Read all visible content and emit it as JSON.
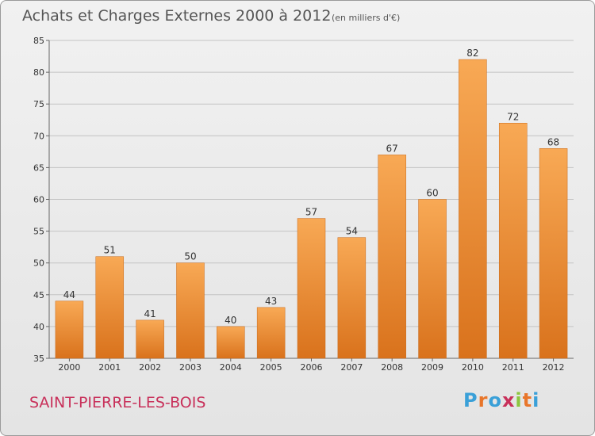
{
  "header": {
    "title": "Achats et Charges Externes 2000 à 2012",
    "unit": "(en milliers d'€)"
  },
  "footer": {
    "commune": "SAINT-PIERRE-LES-BOIS",
    "logo": "Proxiti"
  },
  "colors": {
    "bar_light": "#f8a955",
    "bar_dark": "#d9721c",
    "commune_text": "#c8305a",
    "logo_letters": [
      "#3aa0d8",
      "#e8762a",
      "#3aa0d8",
      "#c8305a",
      "#8cc63f",
      "#e8762a",
      "#3aa0d8"
    ]
  },
  "chart_data": {
    "type": "bar",
    "title": "Achats et Charges Externes 2000 à 2012",
    "subtitle": "(en milliers d'€)",
    "categories": [
      "2000",
      "2001",
      "2002",
      "2003",
      "2004",
      "2005",
      "2006",
      "2007",
      "2008",
      "2009",
      "2010",
      "2011",
      "2012"
    ],
    "values": [
      44,
      51,
      41,
      50,
      40,
      43,
      57,
      54,
      67,
      60,
      82,
      72,
      68
    ],
    "ylim": [
      35,
      85
    ],
    "yticks": [
      35,
      40,
      45,
      50,
      55,
      60,
      65,
      70,
      75,
      80,
      85
    ],
    "grid": true,
    "xlabel": "",
    "ylabel": ""
  }
}
